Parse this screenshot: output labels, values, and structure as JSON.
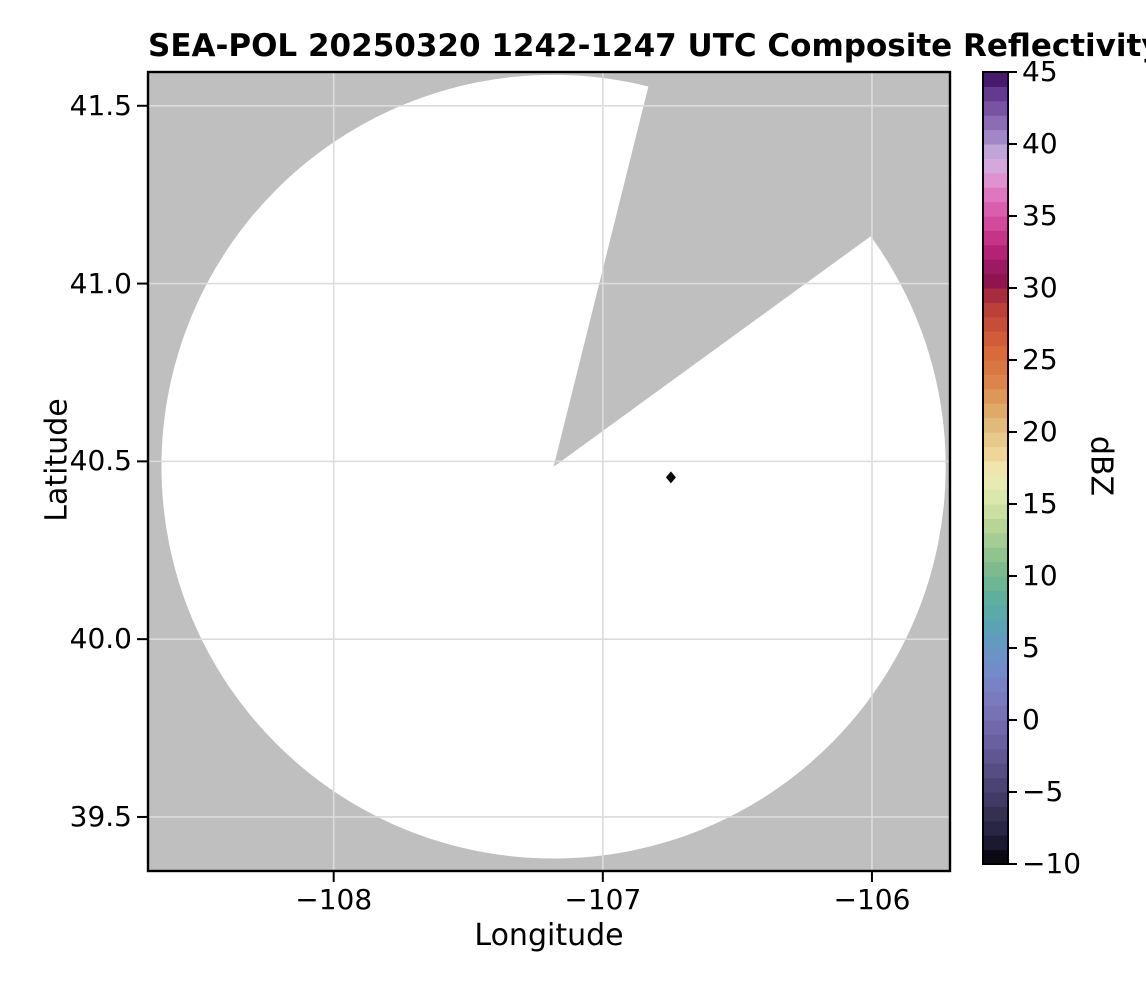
{
  "title": "SEA-POL 20250320 1242-1247 UTC Composite Reflectivity",
  "axes": {
    "xlabel": "Longitude",
    "ylabel": "Latitude",
    "xticks": [
      {
        "label": "−108",
        "lon": -108
      },
      {
        "label": "−107",
        "lon": -107
      },
      {
        "label": "−106",
        "lon": -106
      }
    ],
    "yticks": [
      {
        "label": "41.5",
        "lat": 41.5
      },
      {
        "label": "41.0",
        "lat": 41.0
      },
      {
        "label": "40.5",
        "lat": 40.5
      },
      {
        "label": "40.0",
        "lat": 40.0
      },
      {
        "label": "39.5",
        "lat": 39.5
      }
    ]
  },
  "colorbar": {
    "label": "dBZ",
    "min": -10,
    "max": 45,
    "ticks": [
      {
        "label": "45",
        "value": 45
      },
      {
        "label": "40",
        "value": 40
      },
      {
        "label": "35",
        "value": 35
      },
      {
        "label": "30",
        "value": 30
      },
      {
        "label": "25",
        "value": 25
      },
      {
        "label": "20",
        "value": 20
      },
      {
        "label": "15",
        "value": 15
      },
      {
        "label": "10",
        "value": 10
      },
      {
        "label": "5",
        "value": 5
      },
      {
        "label": "0",
        "value": 0
      },
      {
        "label": "−5",
        "value": -5
      },
      {
        "label": "−10",
        "value": -10
      }
    ]
  },
  "chart_data": {
    "type": "heatmap",
    "title": "SEA-POL 20250320 1242-1247 UTC Composite Reflectivity",
    "xlabel": "Longitude",
    "ylabel": "Latitude",
    "xlim": [
      -108.69,
      -105.71
    ],
    "ylim": [
      39.348,
      41.595
    ],
    "grid": true,
    "colors": {
      "no_data_gray": "#bfbfbf",
      "scan_area_white": "#ffffff",
      "gridline": "#dcdcdc",
      "spine": "#000000",
      "echo_marker": "#0a0a0a"
    },
    "radar": {
      "lon": -107.183,
      "lat": 40.485,
      "scan_radius_deg_lon": 1.457,
      "scan_radius_deg_lat": 1.102,
      "blocked_sector_azimuth_start_deg": 14,
      "blocked_sector_azimuth_end_deg": 54
    },
    "echoes": [
      {
        "lon": -106.747,
        "lat": 40.455,
        "dbz": -8,
        "marker": "diamond"
      }
    ],
    "colormap_stops": [
      [
        -10,
        "#0b0a13"
      ],
      [
        -9,
        "#1b1930"
      ],
      [
        -8,
        "#292544"
      ],
      [
        -7,
        "#353052"
      ],
      [
        -6,
        "#413a64"
      ],
      [
        -5,
        "#4b4372"
      ],
      [
        -4,
        "#564d82"
      ],
      [
        -3,
        "#605792"
      ],
      [
        -2,
        "#6960a0"
      ],
      [
        -1,
        "#7068ab"
      ],
      [
        0,
        "#7772b4"
      ],
      [
        1,
        "#7a7abe"
      ],
      [
        2,
        "#7982c4"
      ],
      [
        3,
        "#738bc8"
      ],
      [
        4,
        "#6b93c6"
      ],
      [
        5,
        "#629bbf"
      ],
      [
        6,
        "#5ba3b3"
      ],
      [
        7,
        "#5ba9a8"
      ],
      [
        8,
        "#5faf9d"
      ],
      [
        9,
        "#6db593"
      ],
      [
        10,
        "#7eba8e"
      ],
      [
        11,
        "#91c38f"
      ],
      [
        12,
        "#a5cc92"
      ],
      [
        13,
        "#b8d598"
      ],
      [
        14,
        "#cbdfa0"
      ],
      [
        15,
        "#dce7ab"
      ],
      [
        16,
        "#e9e9b2"
      ],
      [
        17,
        "#f0e5ad"
      ],
      [
        18,
        "#edd698"
      ],
      [
        19,
        "#e7c98a"
      ],
      [
        20,
        "#e1b97a"
      ],
      [
        21,
        "#dfa968"
      ],
      [
        22,
        "#dd9857"
      ],
      [
        23,
        "#db854b"
      ],
      [
        24,
        "#d97742"
      ],
      [
        25,
        "#d96a3b"
      ],
      [
        26,
        "#d05c39"
      ],
      [
        27,
        "#c64e38"
      ],
      [
        28,
        "#bb4037"
      ],
      [
        29,
        "#a62c3f"
      ],
      [
        30,
        "#8e1550"
      ],
      [
        31,
        "#9c1a63"
      ],
      [
        32,
        "#b32375"
      ],
      [
        33,
        "#c63488"
      ],
      [
        34,
        "#d24b9b"
      ],
      [
        35,
        "#d95fae"
      ],
      [
        36,
        "#de77c0"
      ],
      [
        37,
        "#de93d0"
      ],
      [
        38,
        "#d4a8dc"
      ],
      [
        39,
        "#c0a5d8"
      ],
      [
        40,
        "#a287c6"
      ],
      [
        41,
        "#8c6cb4"
      ],
      [
        42,
        "#7852a3"
      ],
      [
        43,
        "#643a90"
      ],
      [
        44,
        "#471a6e"
      ],
      [
        45,
        "#330e52"
      ]
    ]
  }
}
